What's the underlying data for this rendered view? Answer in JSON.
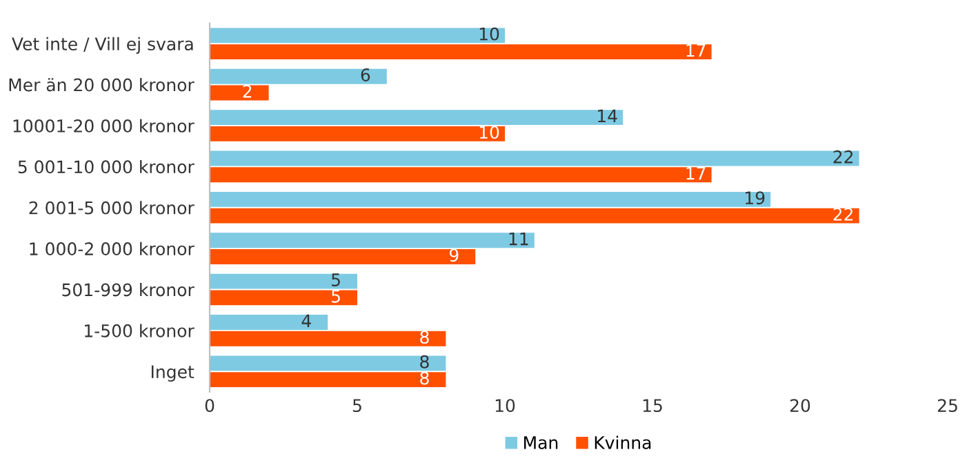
{
  "chart_data": {
    "type": "bar",
    "orientation": "horizontal",
    "categories": [
      "Vet inte / Vill ej svara",
      "Mer än 20 000 kronor",
      "10001-20 000 kronor",
      "5 001-10 000 kronor",
      "2 001-5 000 kronor",
      "1 000-2 000 kronor",
      "501-999 kronor",
      "1-500 kronor",
      "Inget"
    ],
    "series": [
      {
        "name": "Man",
        "color": "#7ecae3",
        "values": [
          10,
          6,
          14,
          22,
          19,
          11,
          5,
          4,
          8
        ]
      },
      {
        "name": "Kvinna",
        "color": "#ff5000",
        "values": [
          17,
          2,
          10,
          17,
          22,
          9,
          5,
          8,
          8
        ]
      }
    ],
    "xlim": [
      0,
      25
    ],
    "xticks": [
      0,
      5,
      10,
      15,
      20,
      25
    ],
    "grid": false,
    "legend": "bottom",
    "data_labels": true
  }
}
